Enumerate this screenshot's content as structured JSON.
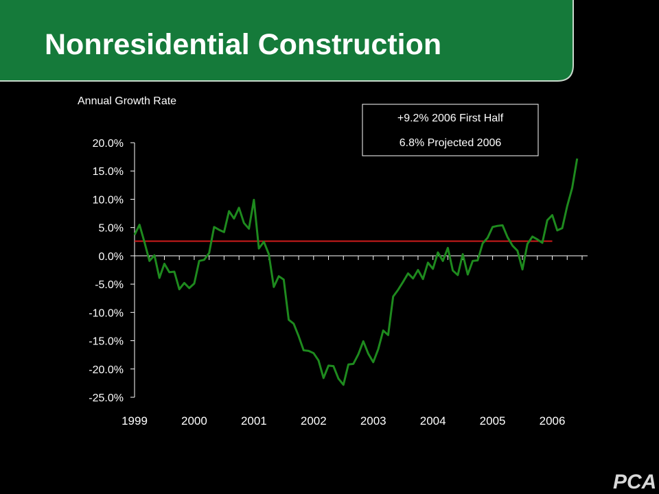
{
  "slide": {
    "title": "Nonresidential Construction",
    "header_color": "#157a3a",
    "logo": "PCA"
  },
  "chart_data": {
    "type": "line",
    "title": "Nonresidential Construction",
    "ylabel": "Annual Growth Rate",
    "xlabel": "",
    "ylim": [
      -25,
      20
    ],
    "yticks": [
      20,
      15,
      10,
      5,
      0,
      -5,
      -10,
      -15,
      -20,
      -25
    ],
    "ytick_labels": [
      "20.0%",
      "15.0%",
      "10.0%",
      "5.0%",
      "0.0%",
      "-5.0%",
      "-10.0%",
      "-15.0%",
      "-20.0%",
      "-25.0%"
    ],
    "xlim": [
      1999,
      2006.5
    ],
    "xticks": [
      1999,
      2000,
      2001,
      2002,
      2003,
      2004,
      2005,
      2006
    ],
    "xtick_labels": [
      "1999",
      "2000",
      "2001",
      "2002",
      "2003",
      "2004",
      "2005",
      "2006"
    ],
    "grid": false,
    "series": [
      {
        "color": "#1e8a1e",
        "start_year": 1999,
        "step_years": 0.0833333,
        "values": [
          3.7,
          5.5,
          2.4,
          -0.9,
          0.1,
          -3.9,
          -1.4,
          -2.9,
          -2.8,
          -5.9,
          -4.8,
          -5.7,
          -4.9,
          -0.9,
          -0.7,
          0.5,
          5.1,
          4.6,
          4.2,
          7.9,
          6.6,
          8.5,
          5.8,
          4.8,
          9.9,
          1.3,
          2.5,
          0.3,
          -5.5,
          -3.6,
          -4.2,
          -11.3,
          -12.0,
          -14.2,
          -16.7,
          -16.8,
          -17.2,
          -18.5,
          -21.6,
          -19.4,
          -19.5,
          -21.7,
          -22.8,
          -19.2,
          -19.1,
          -17.4,
          -15.1,
          -17.3,
          -18.8,
          -16.5,
          -13.2,
          -14.0,
          -7.2,
          -6.0,
          -4.6,
          -3.1,
          -4.0,
          -2.5,
          -4.1,
          -1.2,
          -2.3,
          0.6,
          -0.9,
          1.4,
          -2.6,
          -3.4,
          0.3,
          -3.3,
          -0.9,
          -0.8,
          2.2,
          3.2,
          5.1,
          5.3,
          5.4,
          3.3,
          1.8,
          0.9,
          -2.4,
          2.1,
          3.4,
          2.9,
          2.3,
          6.3,
          7.2,
          4.5,
          4.9,
          8.8,
          12.0,
          17.2
        ]
      },
      {
        "color": "#d01c1c",
        "x": [
          1999,
          2006
        ],
        "values": [
          2.6,
          2.6
        ]
      }
    ],
    "annotations": [
      "+9.2% 2006 First Half",
      "6.8% Projected 2006"
    ]
  }
}
